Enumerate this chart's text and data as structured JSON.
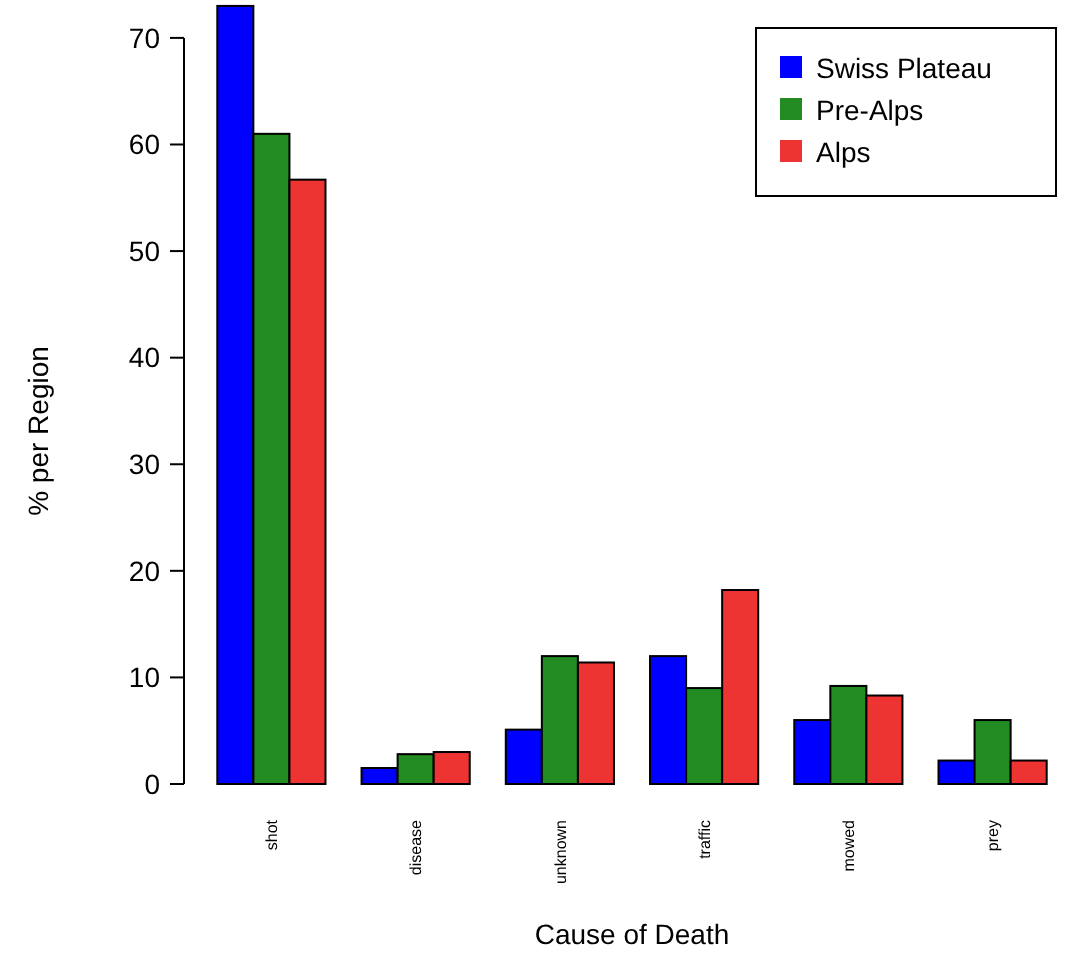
{
  "chart_data": {
    "type": "bar",
    "xlabel": "Cause of Death",
    "ylabel": "% per Region",
    "categories": [
      "shot",
      "disease",
      "unknown",
      "traffic",
      "mowed",
      "prey"
    ],
    "series": [
      {
        "name": "Swiss Plateau",
        "color": "#0000ff",
        "values": [
          73,
          1.5,
          5.1,
          12,
          6,
          2.2
        ]
      },
      {
        "name": "Pre-Alps",
        "color": "#228b22",
        "values": [
          61,
          2.8,
          12,
          9,
          9.2,
          6
        ]
      },
      {
        "name": "Alps",
        "color": "#ee3333",
        "values": [
          56.7,
          3,
          11.4,
          18.2,
          8.3,
          2.2
        ]
      }
    ],
    "ylim": [
      0,
      73.5
    ],
    "yticks": [
      0,
      10,
      20,
      30,
      40,
      50,
      60,
      70
    ],
    "legend": "top right",
    "grid": false
  }
}
